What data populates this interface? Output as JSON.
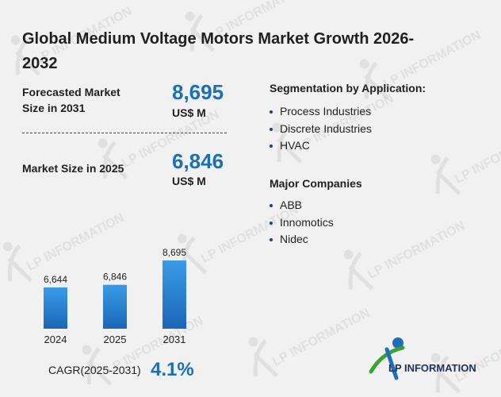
{
  "title": "Global Medium Voltage Motors Market Growth 2026-2032",
  "forecast": {
    "label": "Forecasted Market Size in 2031",
    "value": "8,695",
    "unit": "US$ M"
  },
  "current": {
    "label": "Market Size in 2025",
    "value": "6,846",
    "unit": "US$ M"
  },
  "segmentation": {
    "title": "Segmentation by Application:",
    "items": [
      "Process Industries",
      "Discrete Industries",
      "HVAC"
    ]
  },
  "companies": {
    "title": "Major Companies",
    "items": [
      "ABB",
      "Innomotics",
      "Nidec"
    ]
  },
  "cagr": {
    "label": "CAGR(2025-2031)",
    "value": "4.1%"
  },
  "logo": {
    "text": "LP INFORMATION"
  },
  "watermark": "LP INFORMATION",
  "colors": {
    "accent": "#1a6fb5",
    "bar_top": "#2f8fe0",
    "bar_bottom": "#1c6fc2"
  },
  "chart_data": {
    "type": "bar",
    "categories": [
      "2024",
      "2025",
      "2031"
    ],
    "values": [
      6644,
      6846,
      8695
    ],
    "value_labels": [
      "6,644",
      "6,846",
      "8,695"
    ],
    "title": "",
    "xlabel": "",
    "ylabel": ""
  }
}
